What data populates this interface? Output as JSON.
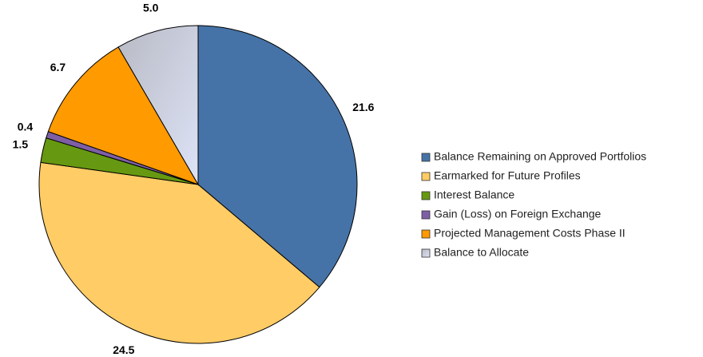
{
  "chart_data": {
    "type": "pie",
    "categories": [
      "Balance Remaining on Approved Portfolios",
      "Earmarked for Future Profiles",
      "Interest Balance",
      "Gain (Loss) on Foreign Exchange",
      "Projected Management Costs Phase II",
      "Balance to Allocate"
    ],
    "values": [
      21.6,
      24.5,
      1.5,
      0.4,
      6.7,
      5
    ],
    "value_labels": [
      "21.6",
      "24.5",
      "1.5",
      "0.4",
      "6.7",
      "5.0"
    ],
    "colors": [
      "#4673a7",
      "#ffcc66",
      "#669911",
      "#7e5fa6",
      "#ff9a00",
      "#dde3f7"
    ],
    "legend": "right"
  }
}
